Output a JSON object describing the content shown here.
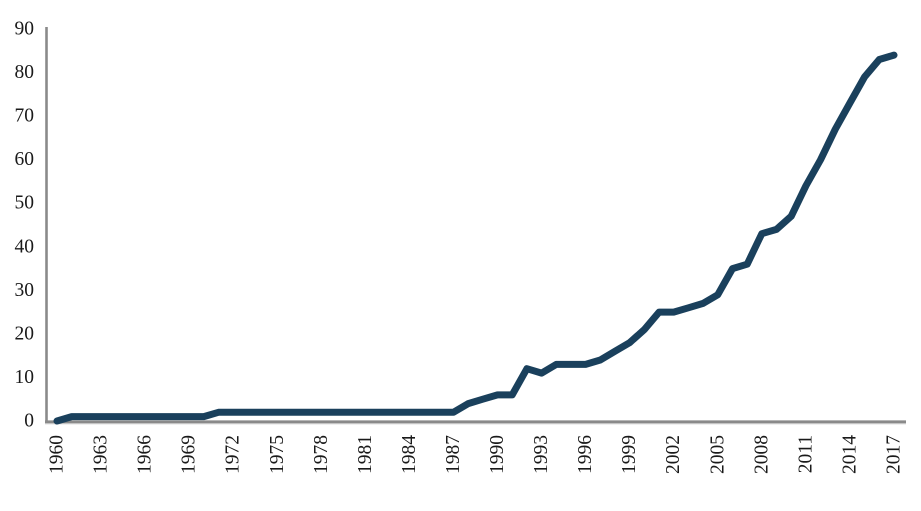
{
  "chart_data": {
    "type": "line",
    "title": "",
    "xlabel": "",
    "ylabel": "",
    "x": [
      1960,
      1961,
      1962,
      1963,
      1964,
      1965,
      1966,
      1967,
      1968,
      1969,
      1970,
      1971,
      1972,
      1973,
      1974,
      1975,
      1976,
      1977,
      1978,
      1979,
      1980,
      1981,
      1982,
      1983,
      1984,
      1985,
      1986,
      1987,
      1988,
      1989,
      1990,
      1991,
      1992,
      1993,
      1994,
      1995,
      1996,
      1997,
      1998,
      1999,
      2000,
      2001,
      2002,
      2003,
      2004,
      2005,
      2006,
      2007,
      2008,
      2009,
      2010,
      2011,
      2012,
      2013,
      2014,
      2015,
      2016,
      2017
    ],
    "values": [
      0,
      1,
      1,
      1,
      1,
      1,
      1,
      1,
      1,
      1,
      1,
      2,
      2,
      2,
      2,
      2,
      2,
      2,
      2,
      2,
      2,
      2,
      2,
      2,
      2,
      2,
      2,
      2,
      4,
      5,
      6,
      6,
      12,
      11,
      13,
      13,
      13,
      14,
      16,
      18,
      21,
      25,
      25,
      26,
      27,
      29,
      35,
      36,
      43,
      44,
      47,
      54,
      60,
      67,
      73,
      79,
      83,
      84
    ],
    "x_tick_labels": [
      "1960",
      "1963",
      "1966",
      "1969",
      "1972",
      "1975",
      "1978",
      "1981",
      "1984",
      "1987",
      "1990",
      "1993",
      "1996",
      "1999",
      "2002",
      "2005",
      "2008",
      "2011",
      "2014",
      "2017"
    ],
    "y_tick_labels": [
      "0",
      "10",
      "20",
      "30",
      "40",
      "50",
      "60",
      "70",
      "80",
      "90"
    ],
    "y_ticks": [
      0,
      10,
      20,
      30,
      40,
      50,
      60,
      70,
      80,
      90
    ],
    "xlim": [
      1960,
      2017
    ],
    "ylim": [
      0,
      90
    ],
    "grid": "off",
    "legend": "none",
    "line_color": "#1A405C",
    "axis_color": "#8a8a8a",
    "axis_shadow_color": "#c4c4c4",
    "label_color": "#1a1a1a"
  }
}
